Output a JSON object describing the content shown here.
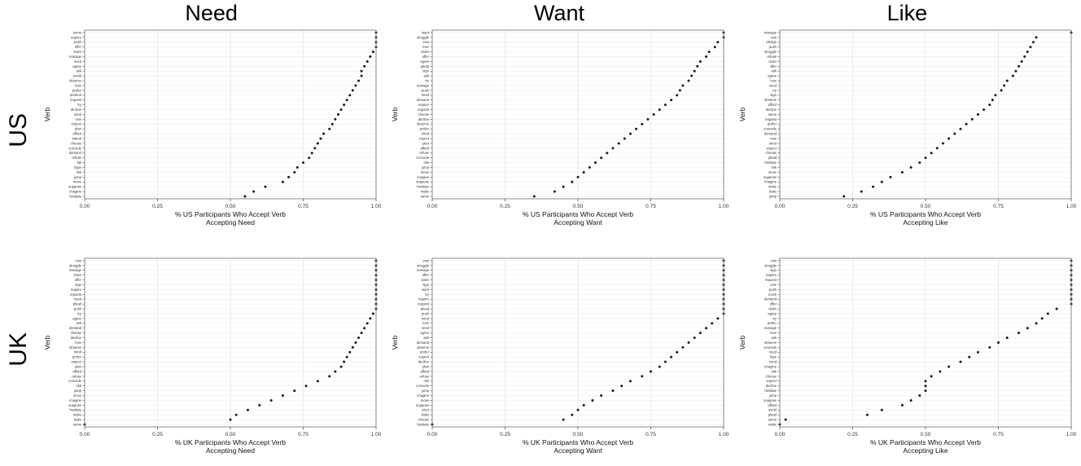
{
  "columns": [
    "Need",
    "Want",
    "Like"
  ],
  "rows": [
    "US",
    "UK"
  ],
  "axis": {
    "ylabel": "Verb",
    "x_ticks": [
      0,
      0.25,
      0.5,
      0.75,
      1.0
    ],
    "x_tick_labels": [
      "0.00",
      "0.25",
      "0.50",
      "0.75",
      "1.00"
    ],
    "xlim": [
      0,
      1
    ],
    "grid": true,
    "dot_color": "#1a1a1a"
  },
  "chart_data": [
    {
      "type": "scatter",
      "row": "US",
      "column": "Need",
      "xlabel_line1": "% US Participants Who Accept Verb",
      "xlabel_line2": "Accepting Need",
      "verbs": [
        "serve",
        "require",
        "push",
        "offer",
        "claim",
        "manage",
        "need",
        "agree",
        "ask",
        "avoid",
        "deserve",
        "love",
        "prefer",
        "pretend",
        "request",
        "try",
        "decline",
        "mind",
        "vow",
        "expect",
        "plan",
        "afford",
        "intend",
        "choose",
        "concede",
        "demand",
        "refuse",
        "fail",
        "hope",
        "risk",
        "jump",
        "move",
        "suppose",
        "imagine",
        "hesitate"
      ],
      "values": [
        1.0,
        1.0,
        1.0,
        1.0,
        0.99,
        0.98,
        0.97,
        0.96,
        0.95,
        0.95,
        0.94,
        0.93,
        0.92,
        0.91,
        0.9,
        0.89,
        0.88,
        0.87,
        0.86,
        0.85,
        0.84,
        0.82,
        0.81,
        0.8,
        0.79,
        0.78,
        0.77,
        0.75,
        0.73,
        0.72,
        0.7,
        0.68,
        0.62,
        0.58,
        0.55
      ]
    },
    {
      "type": "scatter",
      "row": "US",
      "column": "Want",
      "xlabel_line1": "% US Participants Who Accept Verb",
      "xlabel_line2": "Accepting Want",
      "verbs": [
        "want",
        "struggle",
        "vow",
        "love",
        "claim",
        "offer",
        "agree",
        "plead",
        "sign",
        "ask",
        "try",
        "manage",
        "push",
        "need",
        "demand",
        "require",
        "request",
        "choose",
        "decline",
        "deserve",
        "prefer",
        "mind",
        "expect",
        "plan",
        "afford",
        "refuse",
        "concede",
        "risk",
        "jump",
        "move",
        "imagine",
        "suppose",
        "hesitate",
        "make",
        "serve"
      ],
      "values": [
        1.0,
        1.0,
        0.98,
        0.97,
        0.95,
        0.94,
        0.92,
        0.91,
        0.9,
        0.89,
        0.88,
        0.86,
        0.85,
        0.84,
        0.82,
        0.8,
        0.78,
        0.76,
        0.74,
        0.72,
        0.7,
        0.68,
        0.66,
        0.64,
        0.62,
        0.6,
        0.58,
        0.56,
        0.54,
        0.52,
        0.5,
        0.48,
        0.45,
        0.42,
        0.35
      ]
    },
    {
      "type": "scatter",
      "row": "US",
      "column": "Like",
      "xlabel_line1": "% US Participants Who Accept Verb",
      "xlabel_line2": "Accepting Like",
      "verbs": [
        "manage",
        "vow",
        "pledge",
        "push",
        "struggle",
        "refuse",
        "claim",
        "offer",
        "ask",
        "agree",
        "love",
        "need",
        "try",
        "sign",
        "deserve",
        "afford",
        "decline",
        "serve",
        "request",
        "prefer",
        "concede",
        "demand",
        "vote",
        "mind",
        "expect",
        "choose",
        "plead",
        "hesitate",
        "risk",
        "move",
        "suppose",
        "imagine",
        "make",
        "bake",
        "jump"
      ],
      "values": [
        1.0,
        0.88,
        0.87,
        0.86,
        0.85,
        0.84,
        0.83,
        0.82,
        0.81,
        0.8,
        0.78,
        0.77,
        0.76,
        0.74,
        0.73,
        0.72,
        0.7,
        0.68,
        0.66,
        0.64,
        0.62,
        0.6,
        0.58,
        0.56,
        0.54,
        0.52,
        0.5,
        0.48,
        0.45,
        0.42,
        0.38,
        0.35,
        0.32,
        0.28,
        0.22
      ]
    },
    {
      "type": "scatter",
      "row": "UK",
      "column": "Need",
      "xlabel_line1": "% UK Participants Who Accept Verb",
      "xlabel_line2": "Accepting Need",
      "verbs": [
        "vow",
        "struggle",
        "manage",
        "claim",
        "offer",
        "sign",
        "require",
        "request",
        "need",
        "plead",
        "push",
        "try",
        "agree",
        "ask",
        "demand",
        "choose",
        "decline",
        "love",
        "deserve",
        "mind",
        "prefer",
        "expect",
        "plan",
        "afford",
        "refuse",
        "concede",
        "risk",
        "jump",
        "move",
        "imagine",
        "suppose",
        "hesitate",
        "make",
        "bake",
        "serve"
      ],
      "values": [
        1.0,
        1.0,
        1.0,
        1.0,
        1.0,
        1.0,
        1.0,
        1.0,
        1.0,
        1.0,
        1.0,
        0.99,
        0.98,
        0.97,
        0.96,
        0.95,
        0.94,
        0.93,
        0.92,
        0.91,
        0.9,
        0.89,
        0.88,
        0.86,
        0.84,
        0.8,
        0.76,
        0.72,
        0.68,
        0.64,
        0.6,
        0.56,
        0.52,
        0.5,
        0.0
      ]
    },
    {
      "type": "scatter",
      "row": "UK",
      "column": "Want",
      "xlabel_line1": "% UK Participants Who Accept Verb",
      "xlabel_line2": "Accepting Want",
      "verbs": [
        "vow",
        "struggle",
        "manage",
        "offer",
        "claim",
        "sign",
        "want",
        "try",
        "require",
        "request",
        "plead",
        "push",
        "mind",
        "love",
        "need",
        "agree",
        "ask",
        "demand",
        "deserve",
        "prefer",
        "expect",
        "decline",
        "plan",
        "afford",
        "refuse",
        "risk",
        "concede",
        "jump",
        "imagine",
        "move",
        "suppose",
        "elect",
        "bake",
        "choose",
        "hesitate"
      ],
      "values": [
        1.0,
        1.0,
        1.0,
        1.0,
        1.0,
        1.0,
        1.0,
        1.0,
        1.0,
        1.0,
        1.0,
        1.0,
        0.98,
        0.96,
        0.94,
        0.92,
        0.9,
        0.88,
        0.86,
        0.84,
        0.82,
        0.8,
        0.78,
        0.75,
        0.72,
        0.68,
        0.65,
        0.62,
        0.58,
        0.55,
        0.52,
        0.5,
        0.48,
        0.45,
        0.0
      ]
    },
    {
      "type": "scatter",
      "row": "UK",
      "column": "Like",
      "xlabel_line1": "% UK Participants Who Accept Verb",
      "xlabel_line2": "Accepting Like",
      "verbs": [
        "vow",
        "struggle",
        "sign",
        "require",
        "request",
        "vote",
        "push",
        "mock",
        "demand",
        "offer",
        "claim",
        "agree",
        "try",
        "prefer",
        "manage",
        "love",
        "ask",
        "deserve",
        "concede",
        "need",
        "hate",
        "mind",
        "imagine",
        "risk",
        "choose",
        "expect",
        "decline",
        "hesitate",
        "jump",
        "suppose",
        "afford",
        "avoid",
        "plead",
        "serve",
        "make"
      ],
      "values": [
        1.0,
        1.0,
        1.0,
        1.0,
        1.0,
        1.0,
        1.0,
        1.0,
        1.0,
        1.0,
        0.95,
        0.92,
        0.9,
        0.88,
        0.85,
        0.82,
        0.78,
        0.75,
        0.72,
        0.68,
        0.65,
        0.62,
        0.58,
        0.55,
        0.52,
        0.5,
        0.5,
        0.5,
        0.48,
        0.45,
        0.42,
        0.35,
        0.3,
        0.02,
        0.0
      ]
    }
  ]
}
